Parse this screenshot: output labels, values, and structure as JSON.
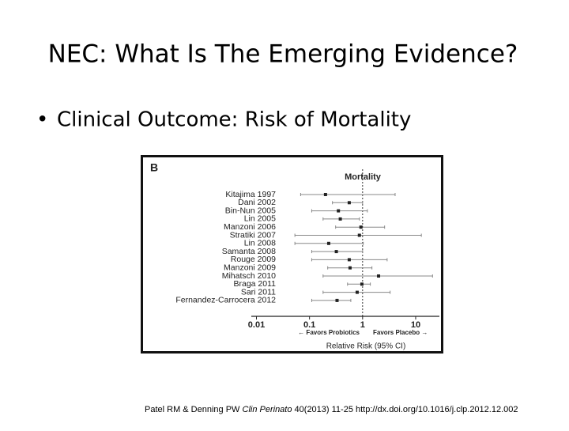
{
  "slide": {
    "title": "NEC: What Is The Emerging Evidence?",
    "bullet": "Clinical Outcome: Risk of Mortality",
    "citation": {
      "authors": "Patel RM & Denning PW ",
      "journal": "Clin Perinato",
      "details": " 40(2013) 11-25 http://dx.doi.org/10.1016/j.clp.2012.12.002"
    }
  },
  "chart_data": {
    "type": "forest",
    "panel_label": "B",
    "title": "Mortality",
    "x_label": "Relative Risk (95% CI)",
    "annotations": [
      "← Favors Probiotics",
      "Favors Placebo →"
    ],
    "categories": [
      "Kitajima 1997",
      "Dani 2002",
      "Bin-Nun 2005",
      "Lin 2005",
      "Manzoni 2006",
      "Stratiki 2007",
      "Lin 2008",
      "Samanta 2008",
      "Rouge 2009",
      "Manzoni 2009",
      "Mihatsch 2010",
      "Braga 2011",
      "Sari 2011",
      "Fernandez-Carrocera 2012"
    ],
    "values": [
      0.2,
      0.56,
      0.35,
      0.38,
      0.93,
      0.87,
      0.23,
      0.32,
      0.56,
      0.58,
      2.0,
      0.97,
      0.79,
      0.33
    ],
    "lower": [
      0.068,
      0.27,
      0.11,
      0.18,
      0.31,
      0.053,
      0.053,
      0.11,
      0.11,
      0.22,
      0.18,
      0.52,
      0.18,
      0.11
    ],
    "upper": [
      4.1,
      1.0,
      1.23,
      0.87,
      2.6,
      12.8,
      1.03,
      1.0,
      2.9,
      1.5,
      20.8,
      1.4,
      3.3,
      0.6
    ],
    "color": "#222222",
    "whisker_color": "#888888",
    "xlim": [
      0.008,
      28
    ],
    "xticks": [
      0.01,
      0.1,
      1,
      10
    ],
    "log_x": true,
    "reference_line": 1
  }
}
